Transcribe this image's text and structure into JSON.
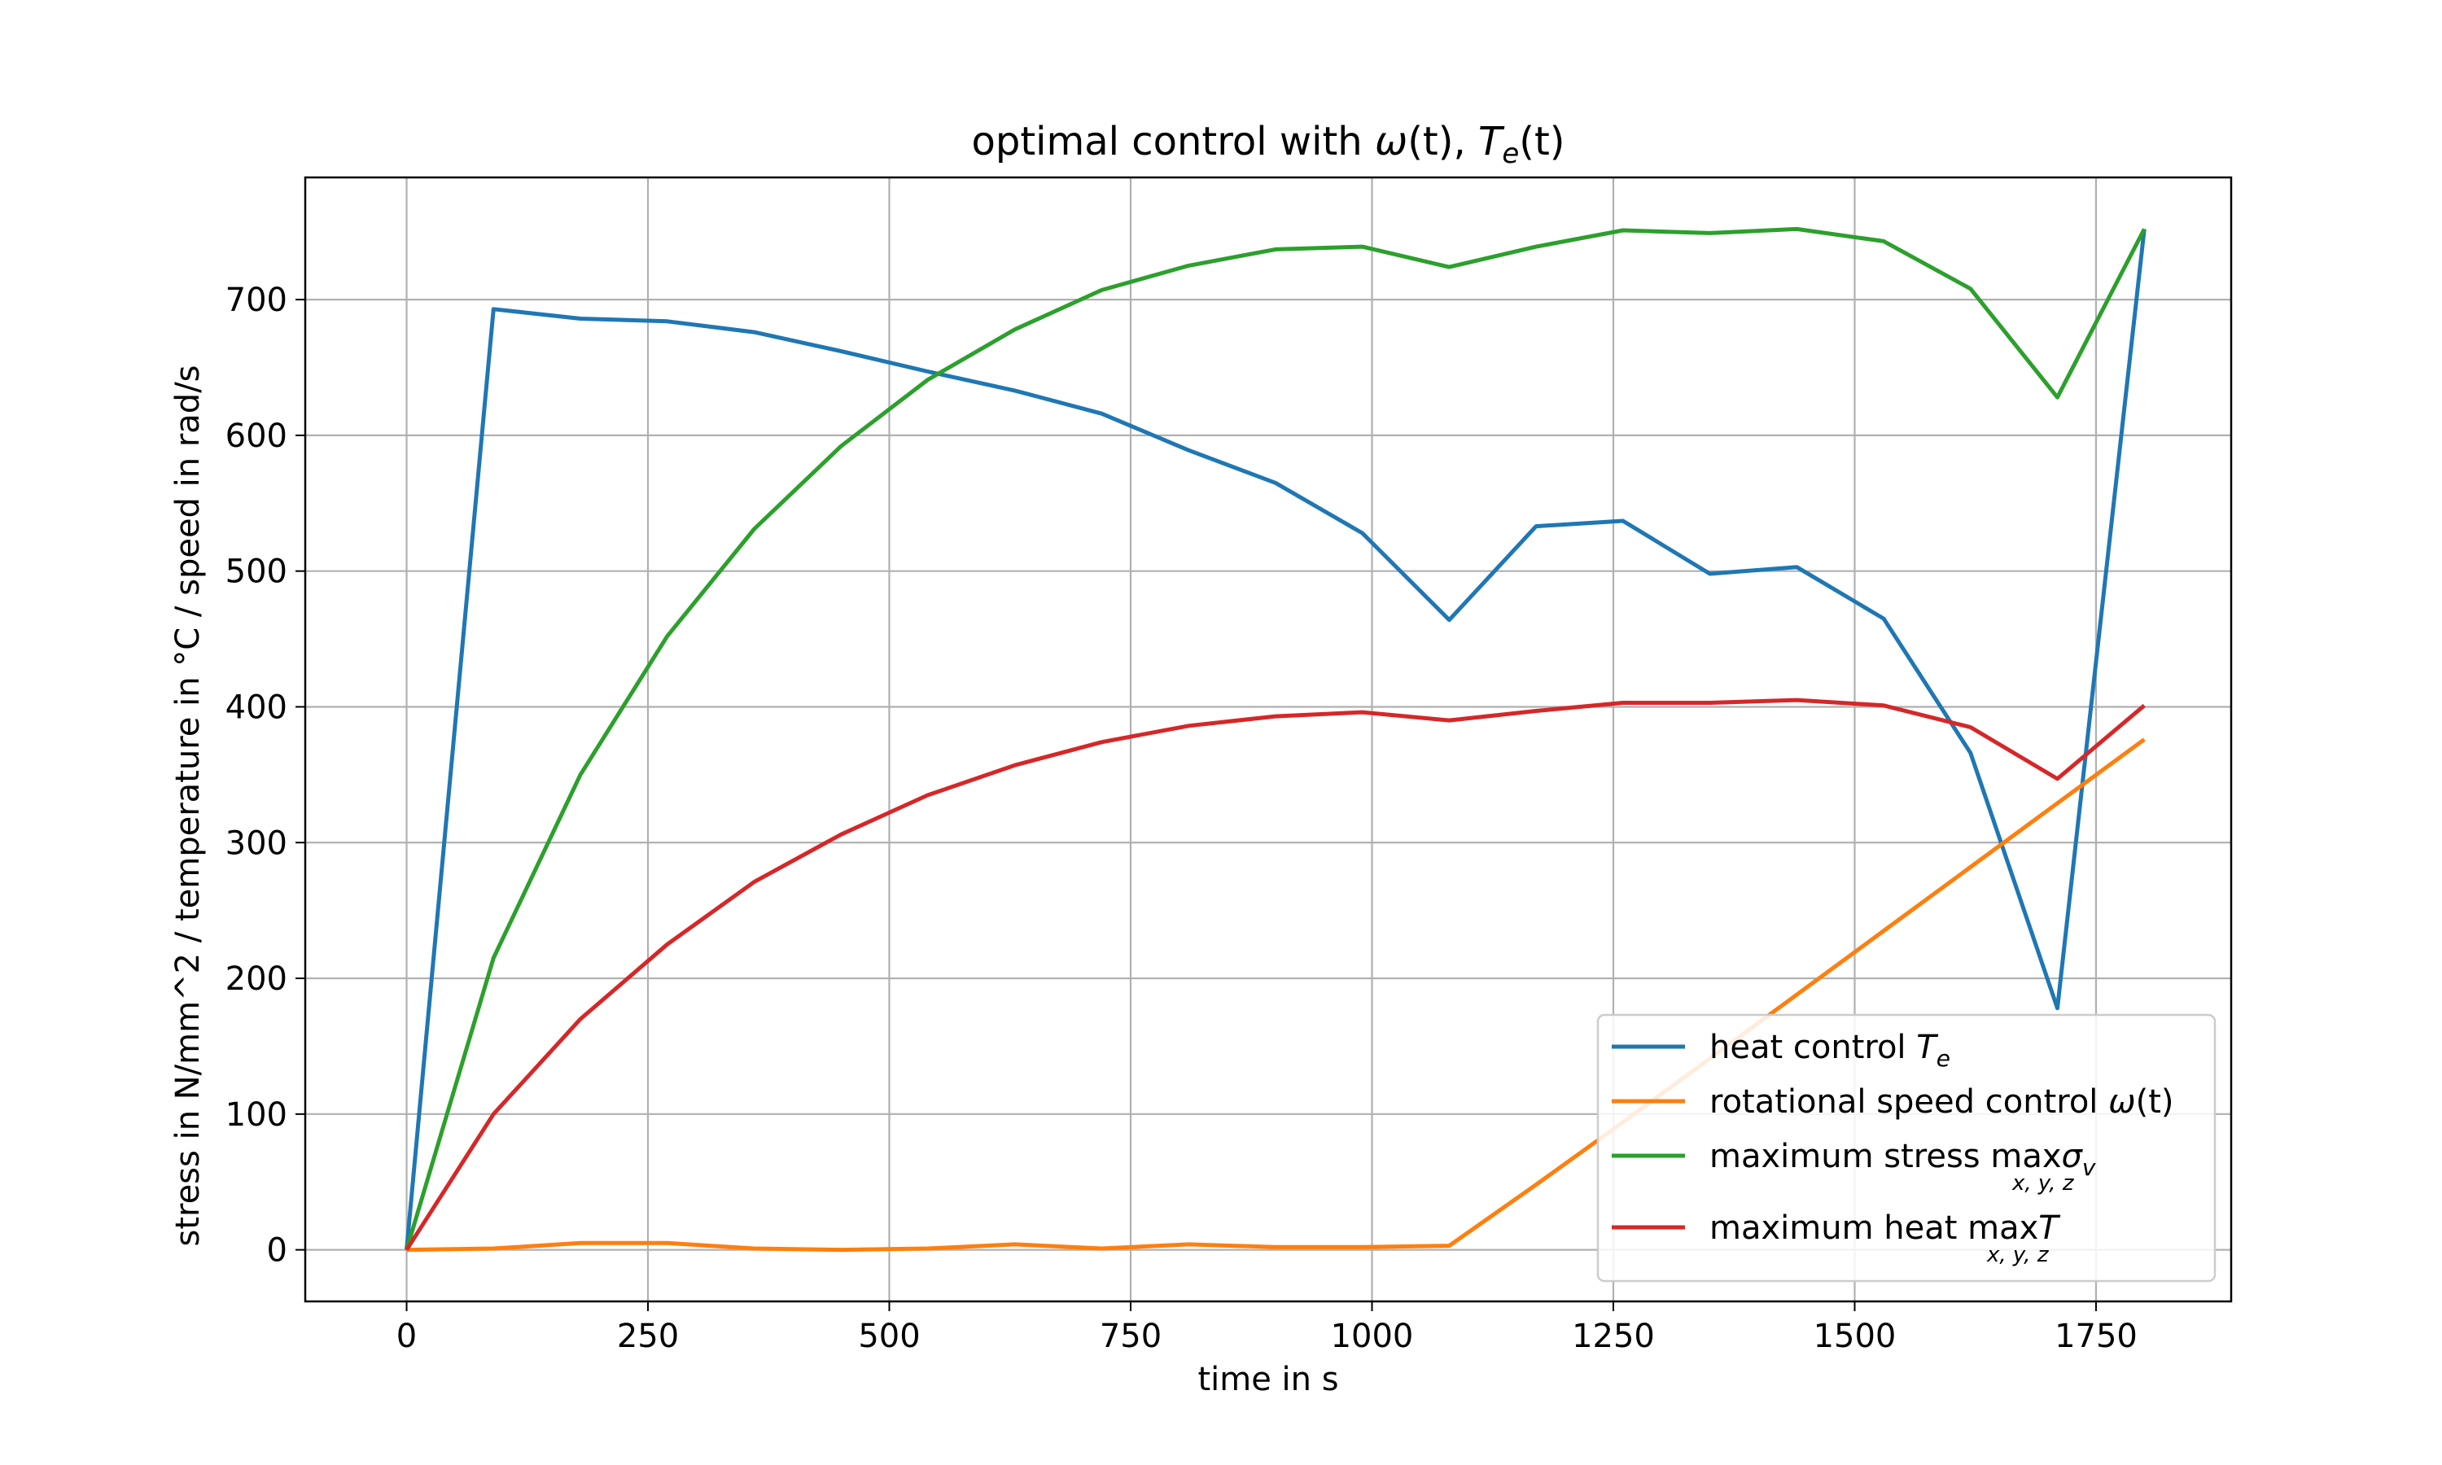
{
  "chart_data": {
    "type": "line",
    "title": {
      "main": "optimal control with ",
      "omega": "ω",
      "paren_t1": "(t), ",
      "T": "T",
      "sub_e": "e",
      "paren_t2": "(t)"
    },
    "xlabel": "time in s",
    "ylabel": "stress in N/mm^2 / temperature in °C / speed in rad/s",
    "xlim": [
      -105,
      1890
    ],
    "ylim": [
      -38,
      790
    ],
    "xticks": [
      0,
      250,
      500,
      750,
      1000,
      1250,
      1500,
      1750
    ],
    "yticks": [
      0,
      100,
      200,
      300,
      400,
      500,
      600,
      700
    ],
    "grid": true,
    "legend_position": "lower-right",
    "x": [
      0,
      90,
      180,
      270,
      360,
      450,
      540,
      630,
      720,
      810,
      900,
      990,
      1080,
      1170,
      1260,
      1350,
      1440,
      1530,
      1620,
      1710,
      1800
    ],
    "series": [
      {
        "name": "heat control ",
        "legend": {
          "text": "heat control ",
          "math": "T",
          "sub": "e"
        },
        "color": "#1f77b4",
        "values": [
          0,
          693,
          686,
          684,
          676,
          662,
          647,
          633,
          616,
          589,
          565,
          528,
          464,
          533,
          537,
          498,
          503,
          465,
          366,
          178,
          752
        ]
      },
      {
        "name": "rotational speed control ω(t)",
        "legend": {
          "text": "rotational speed control ",
          "math": "ω",
          "post": "(t)"
        },
        "color": "#ff7f0e",
        "values": [
          0,
          1,
          5,
          5,
          1,
          0,
          1,
          4,
          1,
          4,
          2,
          2,
          3,
          48,
          94,
          141,
          188,
          235,
          282,
          329,
          376
        ]
      },
      {
        "name": "maximum stress max σv",
        "legend": {
          "text": "maximum stress ",
          "max": "max",
          "maxsub": "x, y, z",
          "math": "σ",
          "sub": "v"
        },
        "color": "#2ca02c",
        "values": [
          0,
          215,
          350,
          452,
          531,
          592,
          641,
          678,
          707,
          725,
          737,
          739,
          724,
          739,
          751,
          749,
          752,
          743,
          708,
          628,
          752
        ]
      },
      {
        "name": "maximum heat max T",
        "legend": {
          "text": "maximum heat ",
          "max": "max",
          "maxsub": "x, y, z",
          "math": "T"
        },
        "color": "#d62728",
        "values": [
          0,
          100,
          170,
          225,
          271,
          306,
          335,
          357,
          374,
          386,
          393,
          396,
          390,
          397,
          403,
          403,
          405,
          401,
          385,
          347,
          401
        ]
      }
    ]
  }
}
